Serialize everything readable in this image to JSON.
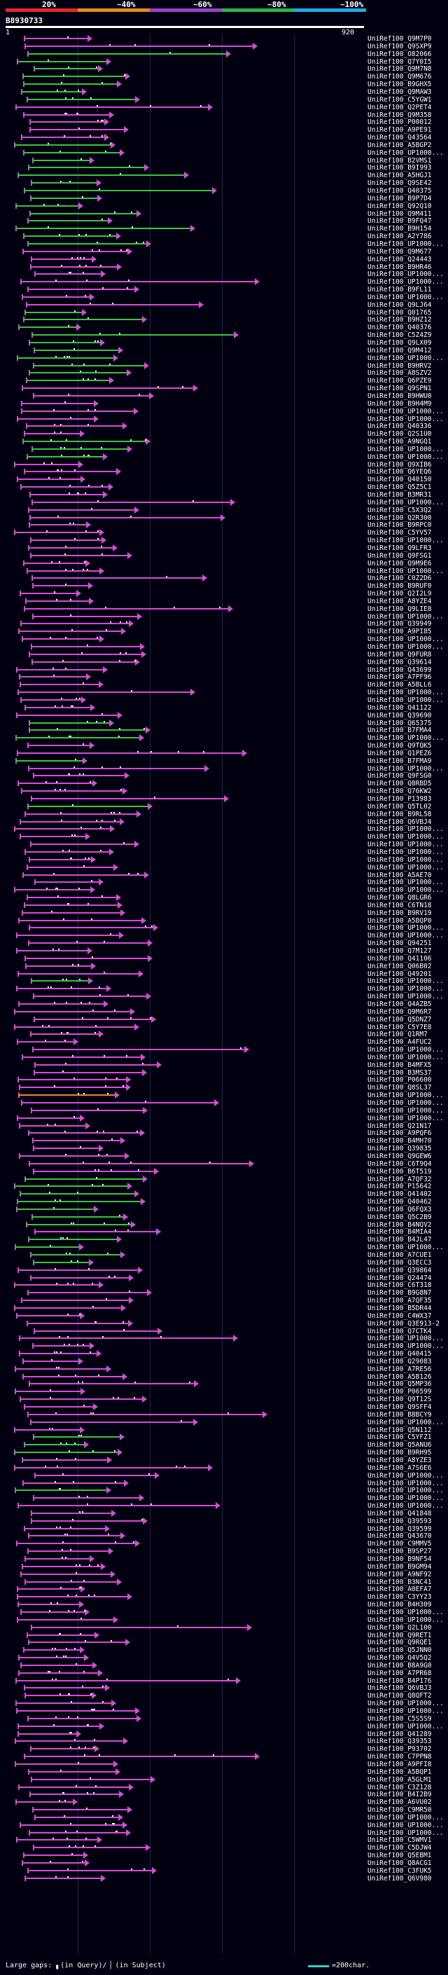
{
  "scale": {
    "percent_labels": [
      "20%",
      "~40%",
      "~60%",
      "~80%",
      "~100%"
    ],
    "band_colors": [
      "#e3262b",
      "#e58a1c",
      "#9b3fc7",
      "#2bb34a",
      "#22a9e6"
    ]
  },
  "query": {
    "id": "B8930733",
    "start": "1",
    "end": "920"
  },
  "colors": {
    "magenta": "#d84ad8",
    "green": "#3cc43c",
    "orange": "#e88a2a",
    "cyan": "#33cccc"
  },
  "hits": [
    "UniRef100_Q9M7P0",
    "UniRef100_Q9SXP9",
    "UniRef100_O82066",
    "UniRef100_Q7Y0I5",
    "UniRef100_Q9M7N8",
    "UniRef100_Q9M676",
    "UniRef100_B9GHX5",
    "UniRef100_Q9MAW3",
    "UniRef100_C5YGW1",
    "UniRef100_Q2PET4",
    "UniRef100_Q9M358",
    "UniRef100_P00012",
    "UniRef100_A9PE91",
    "UniRef100_Q43564",
    "UniRef100_A5BGP2",
    "UniRef100_UP1000...",
    "UniRef100_B2VMS1",
    "UniRef100_B9I993",
    "UniRef100_A5HGJ1",
    "UniRef100_Q9SE42",
    "UniRef100_Q40375",
    "UniRef100_B9P7D4",
    "UniRef100_Q92Q10",
    "UniRef100_Q9M411",
    "UniRef100_B9FQ47",
    "UniRef100_B9H154",
    "UniRef100_A2Y786",
    "UniRef100_UP1000...",
    "UniRef100_Q9M677",
    "UniRef100_Q24443",
    "UniRef100_B9HR46",
    "UniRef100_UP1000...",
    "UniRef100_UP1000...",
    "UniRef100_B9FL11",
    "UniRef100_UP1000...",
    "UniRef100_Q9LJ64",
    "UniRef100_Q01765",
    "UniRef100_B9HZ12",
    "UniRef100_Q40376",
    "UniRef100_C5Z4Z9",
    "UniRef100_Q9LX09",
    "UniRef100_Q9M412",
    "UniRef100_UP1000...",
    "UniRef100_B9HRV2",
    "UniRef100_A8SZV2",
    "UniRef100_Q6PZE9",
    "UniRef100_Q9SPN1",
    "UniRef100_B9HWU0",
    "UniRef100_B9H4M9",
    "UniRef100_UP1000...",
    "UniRef100_UP1000...",
    "UniRef100_Q40336",
    "UniRef100_Q2S1U0",
    "UniRef100_A9NGQ1",
    "UniRef100_UP1000...",
    "UniRef100_UP1000...",
    "UniRef100_Q9XIB6",
    "UniRef100_Q6YEQ6",
    "UniRef100_Q40150",
    "UniRef100_Q5Z5C1",
    "UniRef100_B3MR31",
    "UniRef100_UP1000...",
    "UniRef100_C5X3Q2",
    "UniRef100_Q2R300",
    "UniRef100_B9RPC0",
    "UniRef100_C5YV57",
    "UniRef100_UP1000...",
    "UniRef100_Q9LFR3",
    "UniRef100_Q9FSG1",
    "UniRef100_Q9M9E6",
    "UniRef100_UP1000...",
    "UniRef100_C0Z2D6",
    "UniRef100_B9RUF0",
    "UniRef100_Q2I2L9",
    "UniRef100_A8YZE4",
    "UniRef100_Q9LIE8",
    "UniRef100_UP1000...",
    "UniRef100_Q39949",
    "UniRef100_A9PI85",
    "UniRef100_UP1000...",
    "UniRef100_UP1000...",
    "UniRef100_Q9FUR8",
    "UniRef100_Q39614",
    "UniRef100_Q43699",
    "UniRef100_A7PF96",
    "UniRef100_A5BLL6",
    "UniRef100_UP1000...",
    "UniRef100_UP1000...",
    "UniRef100_Q41122",
    "UniRef100_Q39690",
    "UniRef100_Q65375",
    "UniRef100_B7FMA4",
    "UniRef100_UP1000...",
    "UniRef100_Q9TQK5",
    "UniRef100_Q1PEZ6",
    "UniRef100_B7FMA9",
    "UniRef100_UP1000...",
    "UniRef100_Q9FSG0",
    "UniRef100_Q8RBD5",
    "UniRef100_Q76KW2",
    "UniRef100_P13983",
    "UniRef100_Q5TL02",
    "UniRef100_B9RL58",
    "UniRef100_Q6VBJ4",
    "UniRef100_UP1000...",
    "UniRef100_UP1000...",
    "UniRef100_UP1000...",
    "UniRef100_UP1000...",
    "UniRef100_UP1000...",
    "UniRef100_UP1000...",
    "UniRef100_A5AE70",
    "UniRef100_UP1000...",
    "UniRef100_UP1000...",
    "UniRef100_Q8LGR6",
    "UniRef100_C6TN18",
    "UniRef100_B9RV19",
    "UniRef100_A5BQP0",
    "UniRef100_UP1000...",
    "UniRef100_UP1000...",
    "UniRef100_Q94251",
    "UniRef100_Q7M127",
    "UniRef100_Q41106",
    "UniRef100_Q06B02",
    "UniRef100_Q49201",
    "UniRef100_UP1000...",
    "UniRef100_UP1000...",
    "UniRef100_UP1000...",
    "UniRef100_Q4AZB5",
    "UniRef100_Q9M6R7",
    "UniRef100_Q5DNZ7",
    "UniRef100_C5Y7E8",
    "UniRef100_Q1RM7",
    "UniRef100_A4FUC2",
    "UniRef100_UP1000...",
    "UniRef100_UP1000...",
    "UniRef100_B4MFX5",
    "UniRef100_B3MS37",
    "UniRef100_P06600",
    "UniRef100_Q8SL37",
    "UniRef100_UP1000...",
    "UniRef100_UP1000...",
    "UniRef100_UP1000...",
    "UniRef100_UP1000...",
    "UniRef100_Q21N17",
    "UniRef100_A9PQF6",
    "UniRef100_B4MH70",
    "UniRef100_Q39835",
    "UniRef100_Q9GEW6",
    "UniRef100_C6T9Q4",
    "UniRef100_B6T519",
    "UniRef100_A7QF32",
    "UniRef100_P15642",
    "UniRef100_Q41402",
    "UniRef100_Q40462",
    "UniRef100_Q6FQX3",
    "UniRef100_Q5C2B9",
    "UniRef100_B4NQV2",
    "UniRef100_B4MIA4",
    "UniRef100_B4JL47",
    "UniRef100_UP1000...",
    "UniRef100_A7CUE1",
    "UniRef100_Q3ECC3",
    "UniRef100_Q39864",
    "UniRef100_Q24474",
    "UniRef100_C6T318",
    "UniRef100_B9G8N7",
    "UniRef100_A7QF35",
    "UniRef100_B5DR44",
    "UniRef100_C4WX37",
    "UniRef100_Q3E913-2",
    "UniRef100_Q7CTK4",
    "UniRef100_UP1000...",
    "UniRef100_UP1000...",
    "UniRef100_Q40415",
    "UniRef100_Q29083",
    "UniRef100_A7RE56",
    "UniRef100_A5B126",
    "UniRef100_Q5MP36",
    "UniRef100_P06599",
    "UniRef100_Q9T12S",
    "UniRef100_Q9SFF4",
    "UniRef100_B8BCY9",
    "UniRef100_UP1000...",
    "UniRef100_Q5N112",
    "UniRef100_C5YFZ1",
    "UniRef100_Q5ANU6",
    "UniRef100_B9RH95",
    "UniRef100_A8YZE3",
    "UniRef100_A7S6E6",
    "UniRef100_UP1000...",
    "UniRef100_UP1000...",
    "UniRef100_UP1000...",
    "UniRef100_UP1000...",
    "UniRef100_UP1000...",
    "UniRef100_Q41848",
    "UniRef100_Q39593",
    "UniRef100_Q39599",
    "UniRef100_Q43670",
    "UniRef100_C9MMV5",
    "UniRef100_B9SP27",
    "UniRef100_B9NF54",
    "UniRef100_B9GM94",
    "UniRef100_A9NF92",
    "UniRef100_B3NC41",
    "UniRef100_A0EFA7",
    "UniRef100_C3YY23",
    "UniRef100_B4H309",
    "UniRef100_UP1000...",
    "UniRef100_UP1000...",
    "UniRef100_Q2L100",
    "UniRef100_Q9RET1",
    "UniRef100_Q9RQE1",
    "UniRef100_Q5JNN0",
    "UniRef100_Q4V5Q2",
    "UniRef100_B8A9G0",
    "UniRef100_A7PR68",
    "UniRef100_B4P176",
    "UniRef100_Q6VBJ3",
    "UniRef100_Q8QFT2",
    "UniRef100_UP1000...",
    "UniRef100_UP1000...",
    "UniRef100_C5S5S9",
    "UniRef100_UP1000...",
    "UniRef100_Q41289",
    "UniRef100_Q39353",
    "UniRef100_P93702",
    "UniRef100_C7PPN8",
    "UniRef100_A9PFI8",
    "UniRef100_A5BQP1",
    "UniRef100_A5GLM1",
    "UniRef100_C3Z128",
    "UniRef100_B4I2B9",
    "UniRef100_A6VU02",
    "UniRef100_C9MR50",
    "UniRef100_UP1000...",
    "UniRef100_UP1000...",
    "UniRef100_UP1000...",
    "UniRef100_C5WMV1",
    "UniRef100_C5DJW4",
    "UniRef100_Q5EBM1",
    "UniRef100_Q8ACG1",
    "UniRef100_C3FUK5",
    "UniRef100_Q6V980"
  ],
  "legend": {
    "text": "Large gaps: ▖(in Query)/▕ (in Subject)",
    "scale": "=200char."
  }
}
